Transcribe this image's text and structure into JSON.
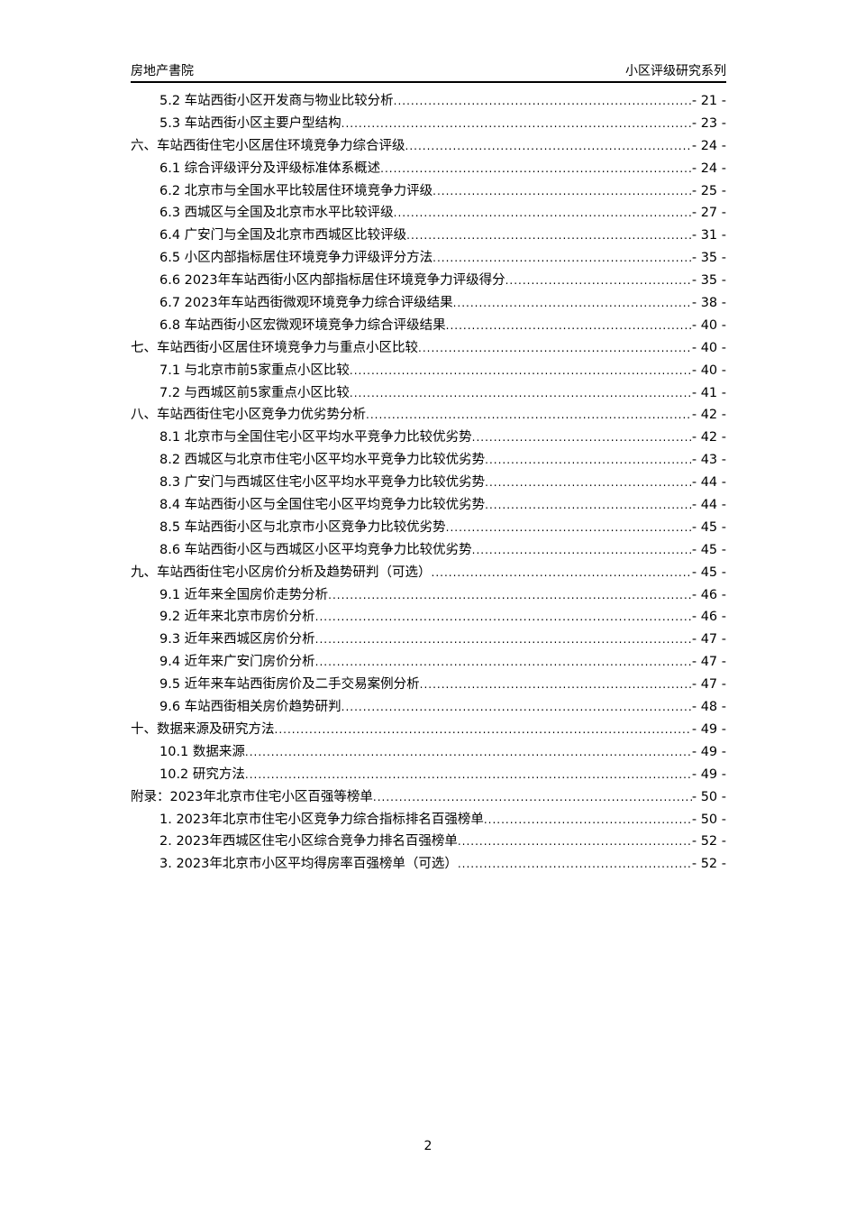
{
  "header": {
    "left": "房地产書院",
    "right": "小区评级研究系列"
  },
  "toc": [
    {
      "level": 2,
      "title": "5.2 车站西街小区开发商与物业比较分析",
      "page": "- 21 -"
    },
    {
      "level": 2,
      "title": "5.3 车站西街小区主要户型结构",
      "page": "- 23 -"
    },
    {
      "level": 1,
      "title": "六、车站西街住宅小区居住环境竞争力综合评级",
      "page": "- 24 -"
    },
    {
      "level": 2,
      "title": "6.1 综合评级评分及评级标准体系概述",
      "page": "- 24 -"
    },
    {
      "level": 2,
      "title": "6.2 北京市与全国水平比较居住环境竞争力评级",
      "page": "- 25 -"
    },
    {
      "level": 2,
      "title": "6.3 西城区与全国及北京市水平比较评级",
      "page": "- 27 -"
    },
    {
      "level": 2,
      "title": "6.4 广安门与全国及北京市西城区比较评级",
      "page": "- 31 -"
    },
    {
      "level": 2,
      "title": "6.5 小区内部指标居住环境竞争力评级评分方法",
      "page": "- 35 -"
    },
    {
      "level": 2,
      "title": "6.6 2023年车站西街小区内部指标居住环境竞争力评级得分",
      "page": "- 35 -"
    },
    {
      "level": 2,
      "title": "6.7 2023年车站西街微观环境竞争力综合评级结果",
      "page": "- 38 -"
    },
    {
      "level": 2,
      "title": "6.8 车站西街小区宏微观环境竞争力综合评级结果",
      "page": "- 40 -"
    },
    {
      "level": 1,
      "title": "七、车站西街小区居住环境竞争力与重点小区比较",
      "page": "- 40 -"
    },
    {
      "level": 2,
      "title": "7.1 与北京市前5家重点小区比较",
      "page": "- 40 -"
    },
    {
      "level": 2,
      "title": "7.2 与西城区前5家重点小区比较",
      "page": "- 41 -"
    },
    {
      "level": 1,
      "title": "八、车站西街住宅小区竞争力优劣势分析",
      "page": "- 42 -"
    },
    {
      "level": 2,
      "title": "8.1 北京市与全国住宅小区平均水平竞争力比较优劣势",
      "page": "- 42 -"
    },
    {
      "level": 2,
      "title": "8.2 西城区与北京市住宅小区平均水平竞争力比较优劣势",
      "page": "- 43 -"
    },
    {
      "level": 2,
      "title": "8.3 广安门与西城区住宅小区平均水平竞争力比较优劣势",
      "page": "- 44 -"
    },
    {
      "level": 2,
      "title": "8.4 车站西街小区与全国住宅小区平均竞争力比较优劣势",
      "page": "- 44 -"
    },
    {
      "level": 2,
      "title": "8.5 车站西街小区与北京市小区竞争力比较优劣势",
      "page": "- 45 -"
    },
    {
      "level": 2,
      "title": "8.6 车站西街小区与西城区小区平均竞争力比较优劣势",
      "page": "- 45 -"
    },
    {
      "level": 1,
      "title": "九、车站西街住宅小区房价分析及趋势研判（可选）",
      "page": "- 45 -"
    },
    {
      "level": 2,
      "title": "9.1 近年来全国房价走势分析",
      "page": "- 46 -"
    },
    {
      "level": 2,
      "title": "9.2 近年来北京市房价分析",
      "page": "- 46 -"
    },
    {
      "level": 2,
      "title": "9.3 近年来西城区房价分析",
      "page": "- 47 -"
    },
    {
      "level": 2,
      "title": "9.4 近年来广安门房价分析",
      "page": "- 47 -"
    },
    {
      "level": 2,
      "title": "9.5 近年来车站西街房价及二手交易案例分析",
      "page": "- 47 -"
    },
    {
      "level": 2,
      "title": "9.6 车站西街相关房价趋势研判",
      "page": "- 48 -"
    },
    {
      "level": 1,
      "title": "十、数据来源及研究方法",
      "page": "- 49 -"
    },
    {
      "level": 2,
      "title": "10.1 数据来源",
      "page": "- 49 -"
    },
    {
      "level": 2,
      "title": "10.2 研究方法",
      "page": "- 49 -"
    },
    {
      "level": 1,
      "title": "附录：2023年北京市住宅小区百强等榜单",
      "page": "- 50 -"
    },
    {
      "level": 2,
      "title": "1. 2023年北京市住宅小区竞争力综合指标排名百强榜单",
      "page": "- 50 -"
    },
    {
      "level": 2,
      "title": "2. 2023年西城区住宅小区综合竞争力排名百强榜单",
      "page": "- 52 -"
    },
    {
      "level": 2,
      "title": "3. 2023年北京市小区平均得房率百强榜单（可选）",
      "page": "- 52 -"
    }
  ],
  "footer": {
    "page_number": "2"
  }
}
